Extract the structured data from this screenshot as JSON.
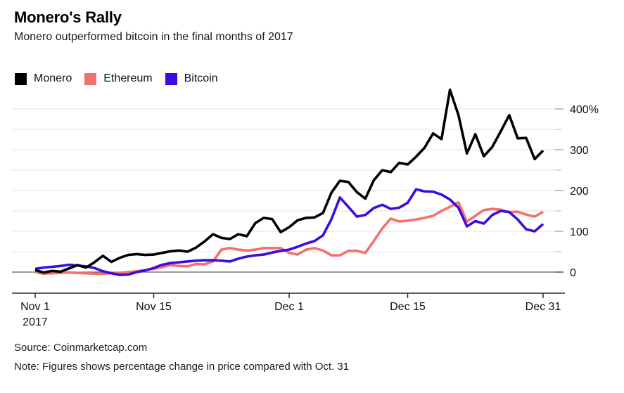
{
  "header": {
    "title": "Monero's Rally",
    "subtitle": "Monero outperformed bitcoin in the final months of 2017"
  },
  "legend": {
    "items": [
      {
        "label": "Monero",
        "color": "#000000"
      },
      {
        "label": "Ethereum",
        "color": "#f56e6e"
      },
      {
        "label": "Bitcoin",
        "color": "#3c0cdd"
      }
    ]
  },
  "chart_data": {
    "type": "line",
    "title": "Monero's Rally",
    "subtitle": "Monero outperformed bitcoin in the final months of 2017",
    "x_unit": "days since Oct 31 2017 (daily points, Nov 1 - Dec 31 2017)",
    "y_unit": "percent change in price vs Oct. 31",
    "day_span": 60,
    "grid": true,
    "legend_position": "top-left",
    "x_axis": {
      "ticks": [
        {
          "day": 0,
          "label": "Nov 1",
          "sublabel": "2017"
        },
        {
          "day": 14,
          "label": "Nov 15"
        },
        {
          "day": 30,
          "label": "Dec 1"
        },
        {
          "day": 44,
          "label": "Dec 15"
        },
        {
          "day": 60,
          "label": "Dec 31"
        }
      ]
    },
    "y_axis": {
      "ticks": [
        {
          "value": 400,
          "label": "400%"
        },
        {
          "value": 300,
          "label": "300"
        },
        {
          "value": 200,
          "label": "200"
        },
        {
          "value": 100,
          "label": "100"
        },
        {
          "value": 0,
          "label": "0"
        }
      ],
      "minor_gridlines": [
        350,
        250,
        150,
        50
      ],
      "ylim": [
        -50,
        460
      ]
    },
    "series": [
      {
        "name": "Ethereum",
        "color": "#f5706c",
        "values": [
          0,
          -4,
          -3,
          -2,
          -1,
          -2,
          -3,
          -4,
          -4,
          -3,
          -2,
          0,
          2,
          5,
          8,
          12,
          17,
          15,
          14,
          20,
          19,
          26,
          55,
          59,
          55,
          53,
          55,
          59,
          59,
          59,
          47,
          43,
          55,
          59,
          53,
          41,
          41,
          52,
          52,
          47,
          76,
          107,
          131,
          124,
          126,
          129,
          133,
          138,
          150,
          160,
          171,
          124,
          138,
          152,
          155,
          153,
          147,
          148,
          141,
          136,
          148
        ]
      },
      {
        "name": "Bitcoin",
        "color": "#3c0cdd",
        "values": [
          8,
          11,
          13,
          15,
          18,
          16,
          14,
          10,
          2,
          -3,
          -7,
          -6,
          0,
          4,
          10,
          18,
          22,
          24,
          26,
          28,
          29,
          29,
          28,
          26,
          33,
          38,
          41,
          43,
          48,
          52,
          55,
          62,
          70,
          76,
          90,
          130,
          183,
          160,
          136,
          140,
          157,
          165,
          155,
          158,
          170,
          203,
          198,
          197,
          190,
          178,
          158,
          112,
          125,
          119,
          140,
          150,
          147,
          129,
          105,
          100,
          118
        ]
      },
      {
        "name": "Monero",
        "color": "#000000",
        "values": [
          5,
          -1,
          3,
          1,
          9,
          17,
          11,
          24,
          40,
          25,
          35,
          42,
          44,
          42,
          43,
          47,
          51,
          53,
          50,
          60,
          75,
          93,
          84,
          81,
          93,
          88,
          120,
          133,
          130,
          98,
          110,
          127,
          133,
          134,
          145,
          195,
          224,
          221,
          196,
          180,
          225,
          250,
          245,
          268,
          264,
          283,
          305,
          340,
          326,
          447,
          385,
          291,
          338,
          284,
          307,
          345,
          385,
          328,
          329,
          277,
          298
        ]
      }
    ]
  },
  "footer": {
    "source": "Source: Coinmarketcap.com",
    "note": "Note: Figures shows percentage change in price compared with Oct. 31"
  }
}
